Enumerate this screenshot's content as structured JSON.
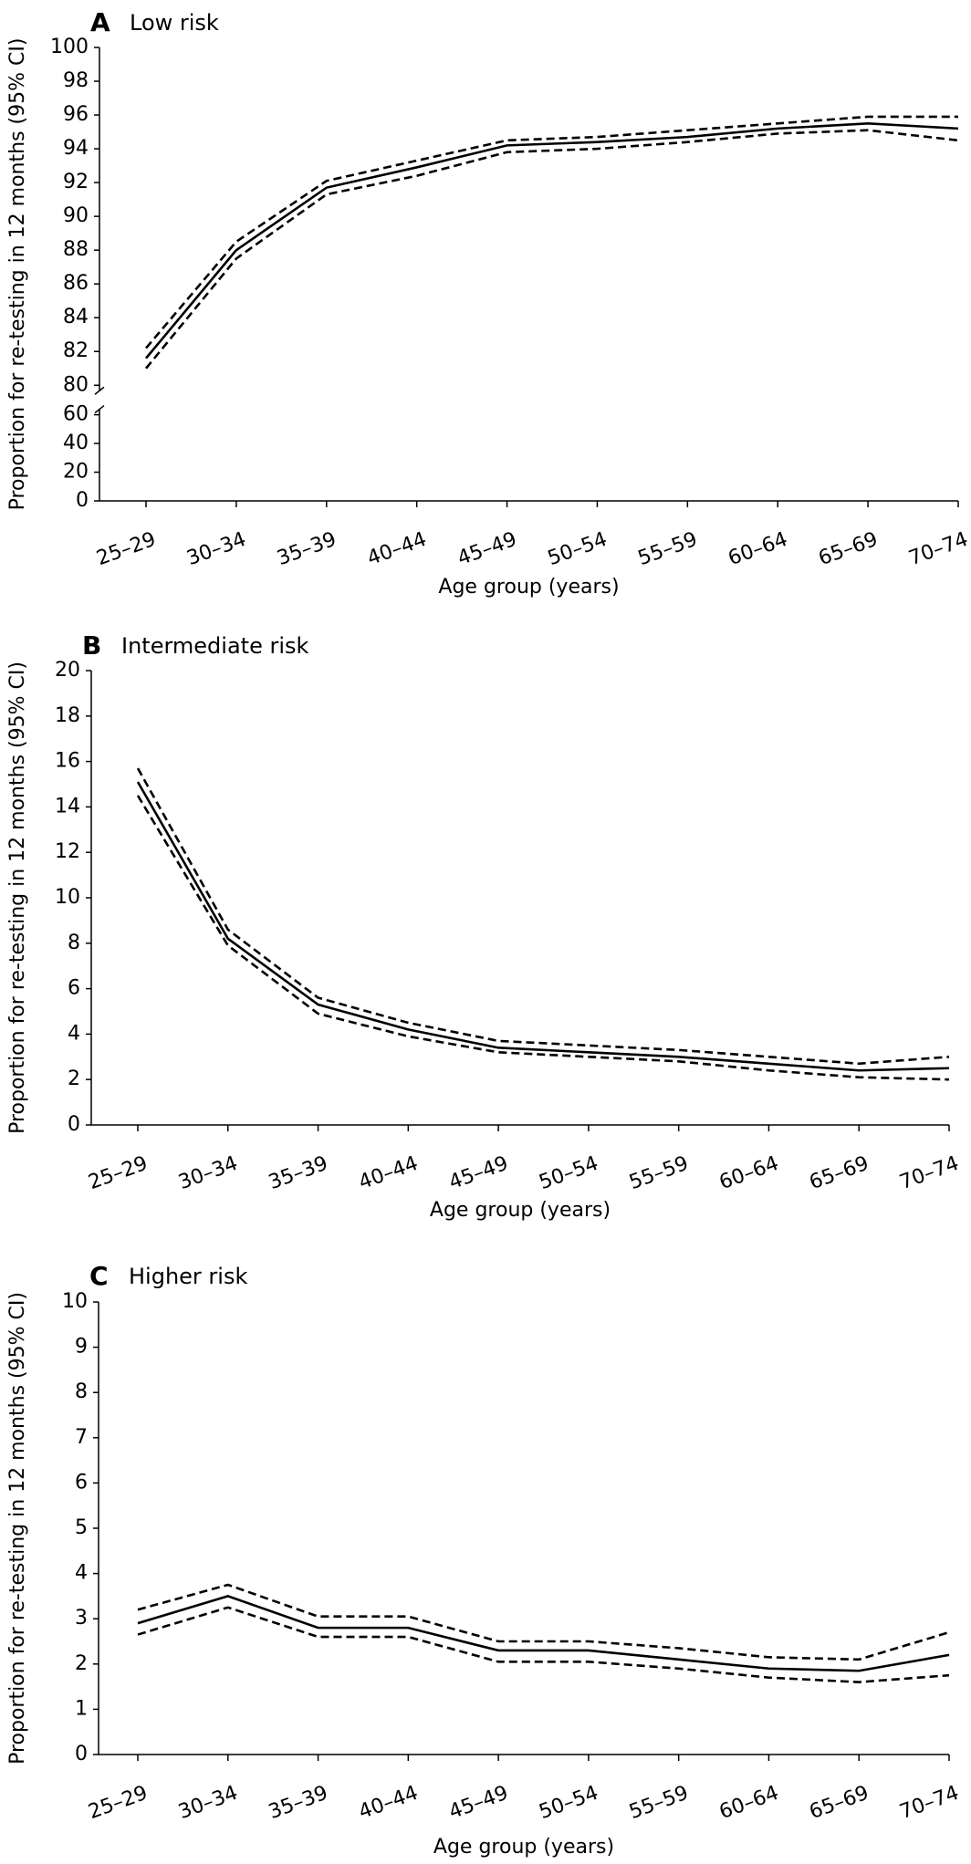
{
  "chart_data": [
    {
      "type": "line",
      "panel": "A",
      "title": "Low risk",
      "xlabel": "Age group (years)",
      "ylabel": "Proportion for re-testing in 12 months (95% CI)",
      "categories": [
        "25–29",
        "30–34",
        "35–39",
        "40–44",
        "45–49",
        "50–54",
        "55–59",
        "60–64",
        "65–69",
        "70–74"
      ],
      "series": [
        {
          "color": "#000000",
          "line_style": "solid",
          "values": [
            81.6,
            88.0,
            91.7,
            92.9,
            94.2,
            94.4,
            94.7,
            95.2,
            95.5,
            95.2
          ]
        },
        {
          "color": "#000000",
          "line_style": "dashed",
          "values": [
            82.2,
            88.5,
            92.1,
            93.3,
            94.5,
            94.7,
            95.1,
            95.5,
            95.9,
            95.9
          ]
        },
        {
          "color": "#000000",
          "line_style": "dashed",
          "values": [
            81.0,
            87.5,
            91.3,
            92.4,
            93.8,
            94.0,
            94.4,
            94.9,
            95.1,
            94.5
          ]
        }
      ],
      "ylim": [
        0,
        100
      ],
      "y_break": [
        60,
        80
      ],
      "yticks": [
        0,
        20,
        40,
        60,
        80,
        82,
        84,
        86,
        88,
        90,
        92,
        94,
        96,
        98,
        100
      ],
      "grid": false
    },
    {
      "type": "line",
      "panel": "B",
      "title": "Intermediate risk",
      "xlabel": "Age group (years)",
      "ylabel": "Proportion for re-testing in 12 months (95% CI)",
      "categories": [
        "25–29",
        "30–34",
        "35–39",
        "40–44",
        "45–49",
        "50–54",
        "55–59",
        "60–64",
        "65–69",
        "70–74"
      ],
      "series": [
        {
          "color": "#000000",
          "line_style": "solid",
          "values": [
            15.1,
            8.2,
            5.3,
            4.2,
            3.4,
            3.2,
            3.0,
            2.7,
            2.4,
            2.5
          ]
        },
        {
          "color": "#000000",
          "line_style": "dashed",
          "values": [
            15.7,
            8.6,
            5.6,
            4.5,
            3.7,
            3.5,
            3.3,
            3.0,
            2.7,
            3.0
          ]
        },
        {
          "color": "#000000",
          "line_style": "dashed",
          "values": [
            14.5,
            7.9,
            4.9,
            3.9,
            3.2,
            3.0,
            2.8,
            2.4,
            2.1,
            2.0
          ]
        }
      ],
      "ylim": [
        0,
        20
      ],
      "yticks": [
        0,
        2,
        4,
        6,
        8,
        10,
        12,
        14,
        16,
        18,
        20
      ],
      "grid": false
    },
    {
      "type": "line",
      "panel": "C",
      "title": "Higher risk",
      "xlabel": "Age group (years)",
      "ylabel": "Proportion for re-testing in 12 months (95% CI)",
      "categories": [
        "25–29",
        "30–34",
        "35–39",
        "40–44",
        "45–49",
        "50–54",
        "55–59",
        "60–64",
        "65–69",
        "70–74"
      ],
      "series": [
        {
          "color": "#000000",
          "line_style": "solid",
          "values": [
            2.9,
            3.5,
            2.8,
            2.8,
            2.3,
            2.3,
            2.1,
            1.9,
            1.85,
            2.2
          ]
        },
        {
          "color": "#000000",
          "line_style": "dashed",
          "values": [
            3.2,
            3.75,
            3.05,
            3.05,
            2.5,
            2.5,
            2.35,
            2.15,
            2.1,
            2.7
          ]
        },
        {
          "color": "#000000",
          "line_style": "dashed",
          "values": [
            2.65,
            3.25,
            2.6,
            2.6,
            2.05,
            2.05,
            1.9,
            1.7,
            1.6,
            1.75
          ]
        }
      ],
      "ylim": [
        0,
        10
      ],
      "yticks": [
        0,
        1,
        2,
        3,
        4,
        5,
        6,
        7,
        8,
        9,
        10
      ],
      "grid": false
    }
  ]
}
